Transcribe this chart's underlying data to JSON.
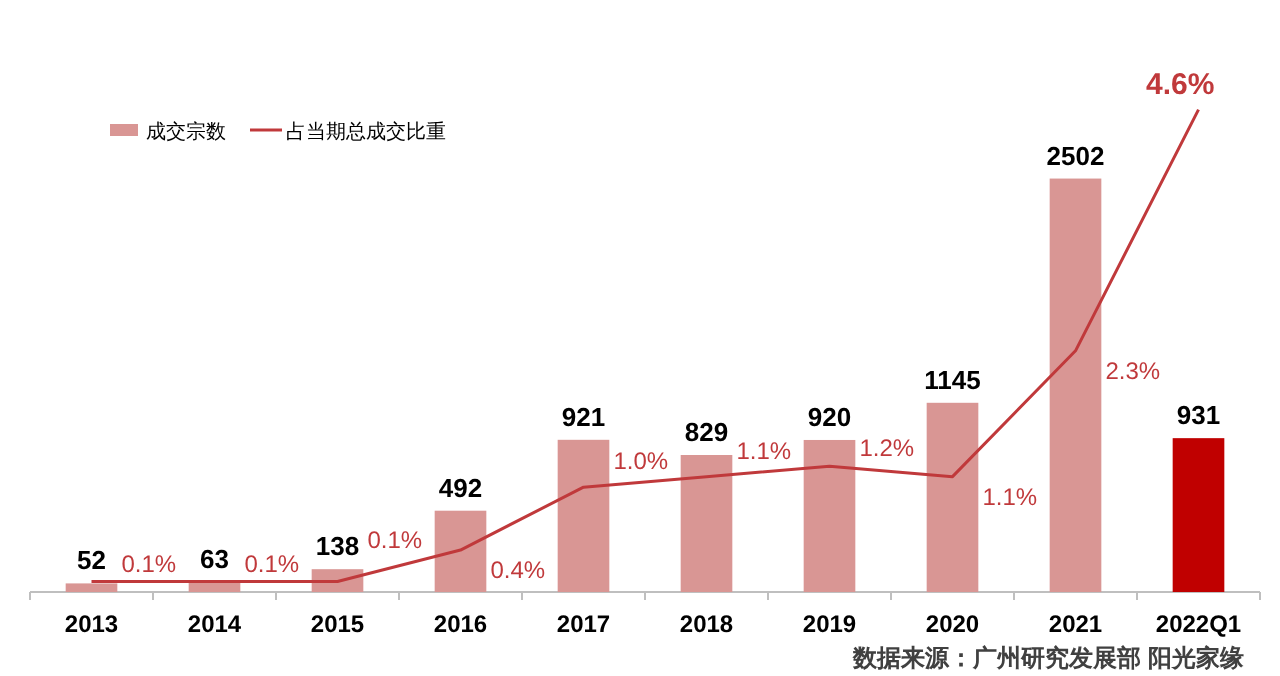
{
  "chart_data": {
    "type": "bar",
    "categories": [
      "2013",
      "2014",
      "2015",
      "2016",
      "2017",
      "2018",
      "2019",
      "2020",
      "2021",
      "2022Q1"
    ],
    "series": [
      {
        "name": "成交宗数",
        "color": "#d99694",
        "colors": [
          "#d99694",
          "#d99694",
          "#d99694",
          "#d99694",
          "#d99694",
          "#d99694",
          "#d99694",
          "#d99694",
          "#d99694",
          "#c00000"
        ],
        "values": [
          52,
          63,
          138,
          492,
          921,
          829,
          920,
          1145,
          2502,
          931
        ]
      },
      {
        "name": "占当期总成交比重",
        "type": "line",
        "axis": "y2",
        "color": "#c0393b",
        "values": [
          0.1,
          0.1,
          0.1,
          0.4,
          1.0,
          1.1,
          1.2,
          1.1,
          2.3,
          4.6
        ],
        "value_labels": [
          "0.1%",
          "0.1%",
          "0.1%",
          "0.4%",
          "1.0%",
          "1.1%",
          "1.2%",
          "1.1%",
          "2.3%",
          "4.6%"
        ]
      }
    ],
    "data_labels": true,
    "legend": "top left",
    "tick_labels": "x",
    "annotations": [
      "数据来源：广州研究发展部 阳光家缘"
    ]
  }
}
